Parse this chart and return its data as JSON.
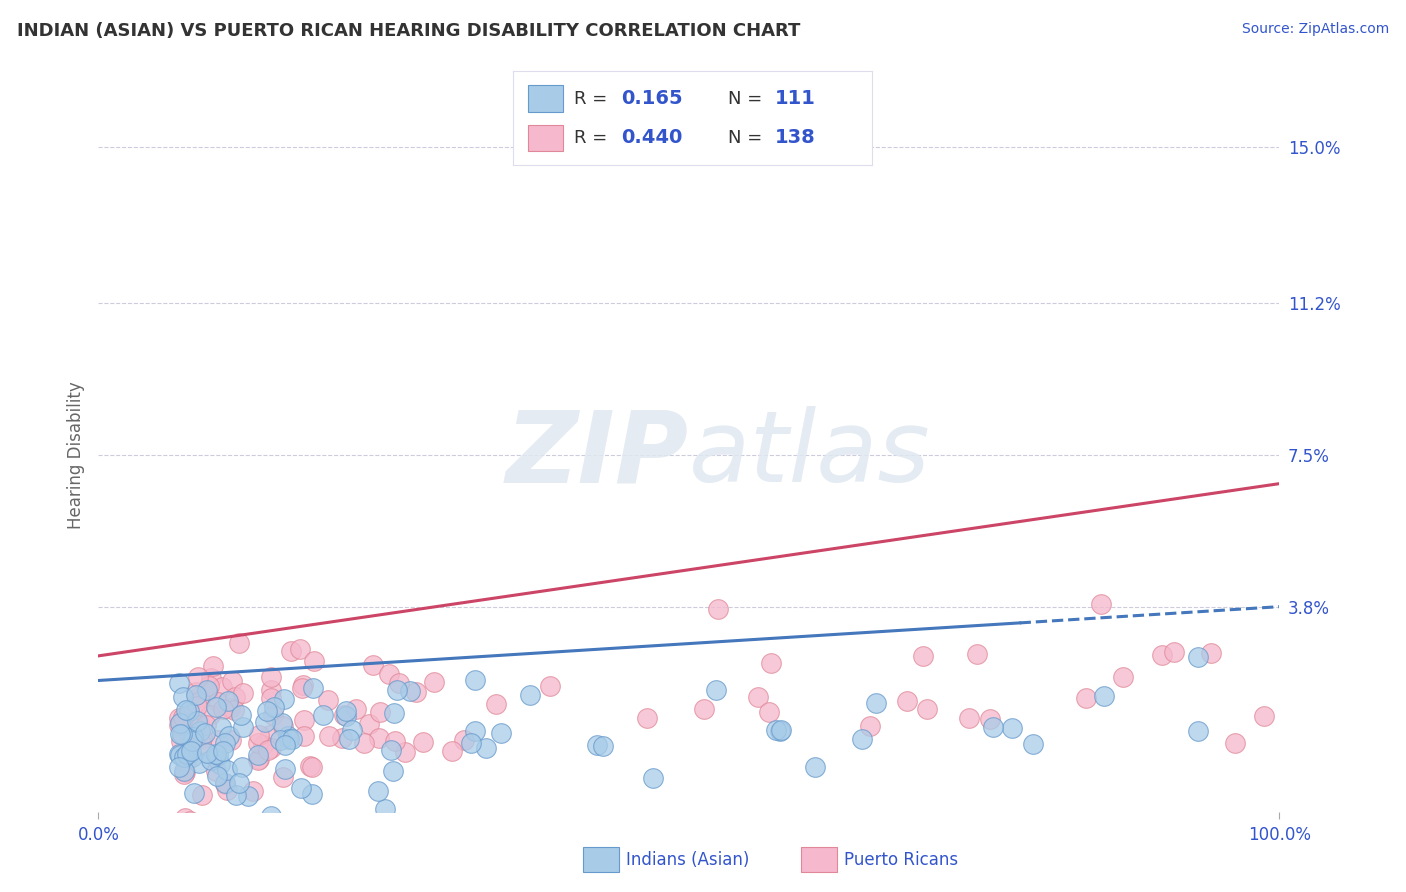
{
  "title": "INDIAN (ASIAN) VS PUERTO RICAN HEARING DISABILITY CORRELATION CHART",
  "source": "Source: ZipAtlas.com",
  "ylabel": "Hearing Disability",
  "ytick_vals": [
    0.0,
    0.038,
    0.075,
    0.112,
    0.15
  ],
  "ytick_labels": [
    "",
    "3.8%",
    "7.5%",
    "11.2%",
    "15.0%"
  ],
  "xtick_vals": [
    0,
    100
  ],
  "xtick_labels": [
    "0.0%",
    "100.0%"
  ],
  "xlim": [
    0.0,
    100.0
  ],
  "ylim": [
    -0.012,
    0.162
  ],
  "r_indian": "0.165",
  "n_indian": "111",
  "r_pr": "0.440",
  "n_pr": "138",
  "color_blue_fill": "#a8cce8",
  "color_blue_edge": "#6699cc",
  "color_pink_fill": "#f5b8cc",
  "color_pink_edge": "#e08899",
  "color_blue_line": "#4477bb",
  "color_pink_line": "#cc4466",
  "color_text_blue": "#3355cc",
  "color_text_dark": "#333333",
  "color_grid": "#ccccdd",
  "background": "#ffffff",
  "title_fontsize": 13,
  "source_fontsize": 10,
  "label_fontsize": 12,
  "tick_fontsize": 12,
  "legend_fontsize": 13
}
